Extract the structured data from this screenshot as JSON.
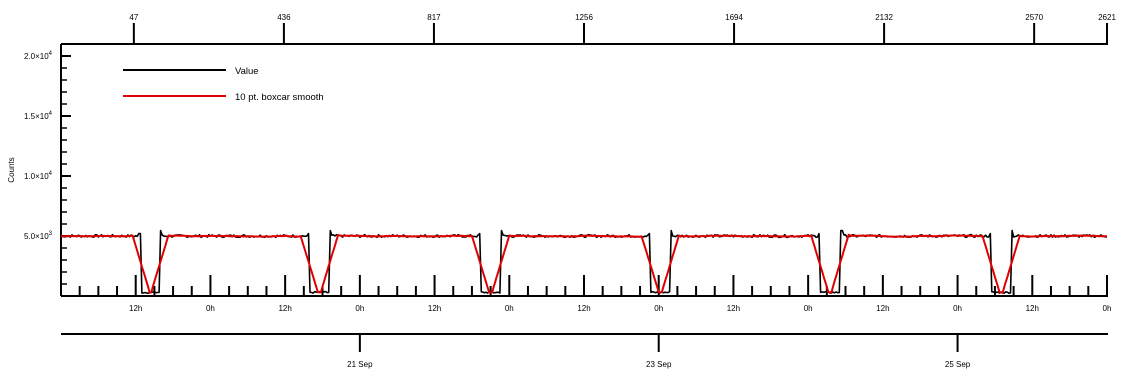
{
  "chart_data": {
    "type": "line",
    "ylabel": "Counts",
    "ylim": [
      0,
      21000
    ],
    "y_ticks": [
      {
        "value": 5000,
        "mantissa": "5.0×10",
        "exp": "3"
      },
      {
        "value": 10000,
        "mantissa": "1.0×10",
        "exp": "4"
      },
      {
        "value": 15000,
        "mantissa": "1.5×10",
        "exp": "4"
      },
      {
        "value": 20000,
        "mantissa": "2.0×10",
        "exp": "4"
      }
    ],
    "xlim_hours": [
      0,
      168
    ],
    "top_axis_ticks": [
      {
        "hour": 11.7,
        "label": "47"
      },
      {
        "hour": 35.8,
        "label": "436"
      },
      {
        "hour": 59.9,
        "label": "817"
      },
      {
        "hour": 84.0,
        "label": "1256"
      },
      {
        "hour": 108.1,
        "label": "1694"
      },
      {
        "hour": 132.2,
        "label": "2132"
      },
      {
        "hour": 156.3,
        "label": "2570"
      },
      {
        "hour": 168,
        "label": "2621"
      }
    ],
    "hour_ticks": [
      {
        "hour": 12,
        "label": "12h"
      },
      {
        "hour": 24,
        "label": "0h"
      },
      {
        "hour": 36,
        "label": "12h"
      },
      {
        "hour": 48,
        "label": "0h"
      },
      {
        "hour": 60,
        "label": "12h"
      },
      {
        "hour": 72,
        "label": "0h"
      },
      {
        "hour": 84,
        "label": "12h"
      },
      {
        "hour": 96,
        "label": "0h"
      },
      {
        "hour": 108,
        "label": "12h"
      },
      {
        "hour": 120,
        "label": "0h"
      },
      {
        "hour": 132,
        "label": "12h"
      },
      {
        "hour": 144,
        "label": "0h"
      },
      {
        "hour": 156,
        "label": "12h"
      },
      {
        "hour": 168,
        "label": "0h"
      }
    ],
    "date_ticks": [
      {
        "hour": 48,
        "label": "21 Sep"
      },
      {
        "hour": 96,
        "label": "23 Sep"
      },
      {
        "hour": 144,
        "label": "25 Sep"
      }
    ],
    "series": [
      {
        "name": "Value",
        "color": "#000000"
      },
      {
        "name": "10 pt. boxcar smooth",
        "color": "#e00000"
      }
    ],
    "baseline_value": 5000,
    "low_value": 300,
    "dropouts_hours": [
      [
        12.8,
        15.9
      ],
      [
        40.0,
        43.1
      ],
      [
        67.4,
        70.6
      ],
      [
        94.7,
        97.9
      ],
      [
        122.0,
        125.2
      ],
      [
        149.4,
        152.5
      ]
    ],
    "legend_position": "top-left",
    "grid": false
  }
}
